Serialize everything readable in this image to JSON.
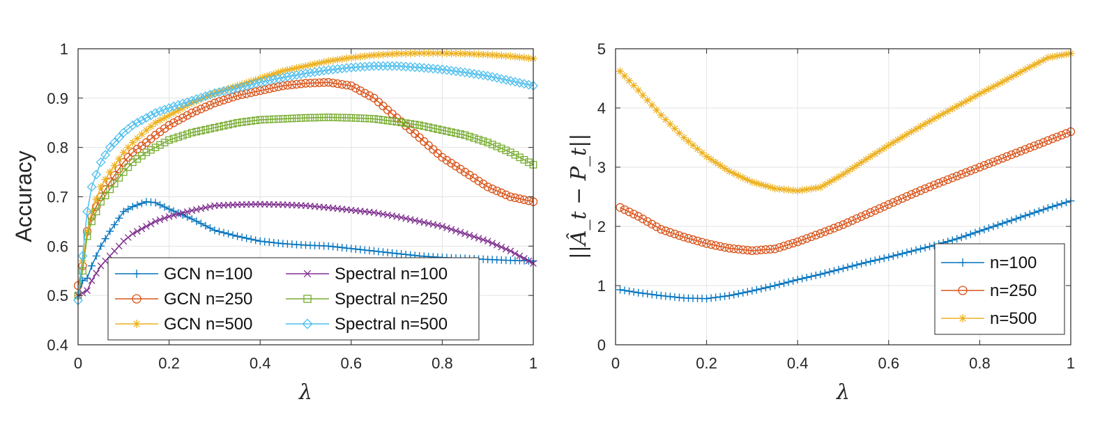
{
  "chart_data": [
    {
      "type": "line",
      "xlabel": "λ",
      "ylabel": "Accuracy",
      "xlim": [
        0,
        1
      ],
      "ylim": [
        0.4,
        1
      ],
      "xticks": [
        0,
        0.2,
        0.4,
        0.6,
        0.8,
        1
      ],
      "yticks": [
        0.4,
        0.5,
        0.6,
        0.7,
        0.8,
        0.9,
        1
      ],
      "xtick_labels": [
        "0",
        "0.2",
        "0.4",
        "0.6",
        "0.8",
        "1"
      ],
      "ytick_labels": [
        "0.4",
        "0.5",
        "0.6",
        "0.7",
        "0.8",
        "0.9",
        "1"
      ],
      "grid": true,
      "legend_position": "bottom-left",
      "x": [
        0,
        0.01,
        0.02,
        0.03,
        0.05,
        0.07,
        0.1,
        0.12,
        0.15,
        0.17,
        0.2,
        0.25,
        0.3,
        0.35,
        0.4,
        0.45,
        0.5,
        0.55,
        0.6,
        0.65,
        0.7,
        0.75,
        0.8,
        0.85,
        0.9,
        0.95,
        1
      ],
      "series": [
        {
          "name": "GCN n=100",
          "color": "#0072BD",
          "marker": "plus",
          "values": [
            0.5,
            0.53,
            0.535,
            0.56,
            0.6,
            0.63,
            0.67,
            0.68,
            0.69,
            0.688,
            0.675,
            0.655,
            0.632,
            0.62,
            0.61,
            0.605,
            0.602,
            0.6,
            0.595,
            0.59,
            0.585,
            0.58,
            0.577,
            0.575,
            0.573,
            0.571,
            0.57
          ]
        },
        {
          "name": "GCN n=250",
          "color": "#D95319",
          "marker": "circle",
          "values": [
            0.52,
            0.56,
            0.63,
            0.66,
            0.7,
            0.73,
            0.77,
            0.79,
            0.81,
            0.825,
            0.845,
            0.87,
            0.89,
            0.905,
            0.915,
            0.925,
            0.93,
            0.932,
            0.925,
            0.9,
            0.86,
            0.82,
            0.78,
            0.75,
            0.72,
            0.7,
            0.69
          ]
        },
        {
          "name": "GCN n=500",
          "color": "#EDB120",
          "marker": "asterisk",
          "values": [
            0.5,
            0.57,
            0.63,
            0.67,
            0.72,
            0.75,
            0.79,
            0.81,
            0.835,
            0.85,
            0.865,
            0.89,
            0.91,
            0.925,
            0.94,
            0.955,
            0.965,
            0.975,
            0.982,
            0.987,
            0.99,
            0.991,
            0.991,
            0.99,
            0.988,
            0.985,
            0.98
          ]
        },
        {
          "name": "Spectral n=100",
          "color": "#7E2F8E",
          "marker": "x",
          "values": [
            0.5,
            0.505,
            0.51,
            0.53,
            0.56,
            0.58,
            0.61,
            0.625,
            0.64,
            0.65,
            0.66,
            0.672,
            0.682,
            0.684,
            0.685,
            0.684,
            0.682,
            0.678,
            0.673,
            0.668,
            0.66,
            0.65,
            0.64,
            0.625,
            0.61,
            0.59,
            0.565
          ]
        },
        {
          "name": "Spectral n=250",
          "color": "#77AC30",
          "marker": "square",
          "values": [
            0.5,
            0.55,
            0.62,
            0.65,
            0.69,
            0.715,
            0.75,
            0.77,
            0.79,
            0.8,
            0.815,
            0.83,
            0.84,
            0.85,
            0.856,
            0.858,
            0.86,
            0.861,
            0.86,
            0.858,
            0.852,
            0.845,
            0.835,
            0.825,
            0.81,
            0.79,
            0.765
          ]
        },
        {
          "name": "Spectral n=500",
          "color": "#4DBEEE",
          "marker": "diamond",
          "values": [
            0.49,
            0.58,
            0.67,
            0.72,
            0.77,
            0.8,
            0.83,
            0.845,
            0.86,
            0.87,
            0.88,
            0.895,
            0.91,
            0.92,
            0.932,
            0.942,
            0.95,
            0.957,
            0.962,
            0.965,
            0.965,
            0.962,
            0.958,
            0.952,
            0.945,
            0.935,
            0.925
          ]
        }
      ]
    },
    {
      "type": "line",
      "xlabel": "λ",
      "ylabel": "||Â_t − P_t||",
      "xlim": [
        0,
        1
      ],
      "ylim": [
        0,
        5
      ],
      "xticks": [
        0,
        0.2,
        0.4,
        0.6,
        0.8,
        1
      ],
      "yticks": [
        0,
        1,
        2,
        3,
        4,
        5
      ],
      "xtick_labels": [
        "0",
        "0.2",
        "0.4",
        "0.6",
        "0.8",
        "1"
      ],
      "ytick_labels": [
        "0",
        "1",
        "2",
        "3",
        "4",
        "5"
      ],
      "grid": true,
      "legend_position": "bottom-right",
      "x": [
        0.01,
        0.05,
        0.1,
        0.15,
        0.2,
        0.25,
        0.3,
        0.35,
        0.4,
        0.45,
        0.5,
        0.55,
        0.6,
        0.65,
        0.7,
        0.75,
        0.8,
        0.85,
        0.9,
        0.95,
        1
      ],
      "series": [
        {
          "name": "n=100",
          "color": "#0072BD",
          "marker": "plus",
          "values": [
            0.93,
            0.88,
            0.83,
            0.79,
            0.78,
            0.83,
            0.91,
            1.0,
            1.1,
            1.19,
            1.29,
            1.39,
            1.48,
            1.58,
            1.68,
            1.79,
            1.92,
            2.05,
            2.18,
            2.31,
            2.43
          ]
        },
        {
          "name": "n=250",
          "color": "#D95319",
          "marker": "circle",
          "values": [
            2.32,
            2.17,
            1.95,
            1.82,
            1.71,
            1.63,
            1.59,
            1.62,
            1.74,
            1.88,
            2.03,
            2.2,
            2.37,
            2.54,
            2.7,
            2.85,
            3.0,
            3.15,
            3.3,
            3.45,
            3.6
          ]
        },
        {
          "name": "n=500",
          "color": "#EDB120",
          "marker": "asterisk",
          "values": [
            4.62,
            4.3,
            3.88,
            3.5,
            3.18,
            2.93,
            2.75,
            2.64,
            2.6,
            2.66,
            2.88,
            3.13,
            3.37,
            3.6,
            3.82,
            4.03,
            4.24,
            4.44,
            4.65,
            4.85,
            4.92
          ]
        }
      ]
    }
  ]
}
